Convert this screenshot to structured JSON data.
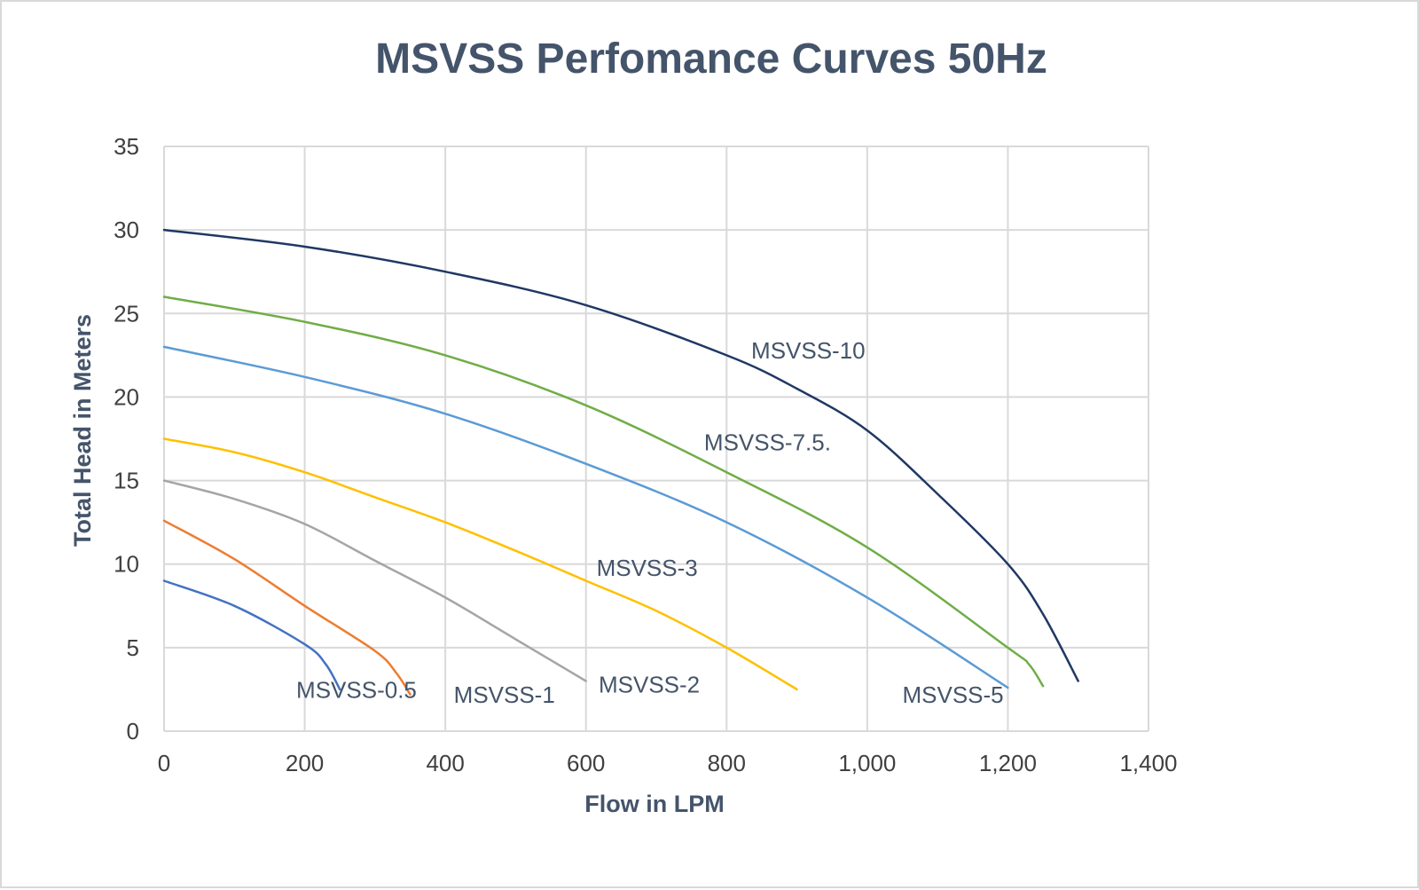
{
  "chart_data": {
    "type": "line",
    "title": "MSVSS Perfomance Curves 50Hz",
    "xlabel": "Flow in LPM",
    "ylabel": "Total Head in Meters",
    "xlim": [
      0,
      1400
    ],
    "ylim": [
      0,
      35
    ],
    "x_ticks": [
      "0",
      "200",
      "400",
      "600",
      "800",
      "1,000",
      "1,200",
      "1,400"
    ],
    "y_ticks": [
      "0",
      "5",
      "10",
      "15",
      "20",
      "25",
      "30",
      "35"
    ],
    "grid": true,
    "legend": "none",
    "series": [
      {
        "name": "MSVSS-0.5",
        "color": "#4472c4",
        "points": [
          [
            0,
            9.0
          ],
          [
            100,
            7.5
          ],
          [
            200,
            5.2
          ],
          [
            230,
            4.0
          ],
          [
            250,
            2.5
          ]
        ]
      },
      {
        "name": "MSVSS-1",
        "color": "#ed7d31",
        "points": [
          [
            0,
            12.6
          ],
          [
            100,
            10.3
          ],
          [
            200,
            7.5
          ],
          [
            300,
            4.8
          ],
          [
            330,
            3.5
          ],
          [
            350,
            2.2
          ]
        ]
      },
      {
        "name": "MSVSS-2",
        "color": "#a5a5a5",
        "points": [
          [
            0,
            15.0
          ],
          [
            100,
            13.9
          ],
          [
            200,
            12.4
          ],
          [
            300,
            10.2
          ],
          [
            400,
            8.0
          ],
          [
            500,
            5.5
          ],
          [
            600,
            3.0
          ]
        ]
      },
      {
        "name": "MSVSS-3",
        "color": "#ffc000",
        "points": [
          [
            0,
            17.5
          ],
          [
            100,
            16.7
          ],
          [
            200,
            15.5
          ],
          [
            300,
            14.0
          ],
          [
            400,
            12.5
          ],
          [
            500,
            10.8
          ],
          [
            600,
            9.0
          ],
          [
            700,
            7.2
          ],
          [
            800,
            5.0
          ],
          [
            900,
            2.5
          ]
        ]
      },
      {
        "name": "MSVSS-5",
        "color": "#5b9bd5",
        "points": [
          [
            0,
            23.0
          ],
          [
            200,
            21.2
          ],
          [
            400,
            19.0
          ],
          [
            600,
            16.0
          ],
          [
            800,
            12.5
          ],
          [
            1000,
            8.0
          ],
          [
            1200,
            2.6
          ]
        ]
      },
      {
        "name": "MSVSS-7.5.",
        "color": "#70ad47",
        "points": [
          [
            0,
            26.0
          ],
          [
            200,
            24.5
          ],
          [
            400,
            22.5
          ],
          [
            600,
            19.5
          ],
          [
            800,
            15.5
          ],
          [
            1000,
            11.0
          ],
          [
            1200,
            5.0
          ],
          [
            1230,
            4.0
          ],
          [
            1250,
            2.7
          ]
        ]
      },
      {
        "name": "MSVSS-10",
        "color": "#203864",
        "points": [
          [
            0,
            30.0
          ],
          [
            200,
            29.0
          ],
          [
            400,
            27.5
          ],
          [
            600,
            25.5
          ],
          [
            800,
            22.5
          ],
          [
            900,
            20.5
          ],
          [
            1000,
            18.0
          ],
          [
            1100,
            14.2
          ],
          [
            1200,
            10.0
          ],
          [
            1250,
            7.0
          ],
          [
            1300,
            3.0
          ]
        ]
      }
    ],
    "annotations": [
      {
        "text": "MSVSS-0.5",
        "x": 188,
        "y": 2.0
      },
      {
        "text": "MSVSS-1",
        "x": 412,
        "y": 1.7
      },
      {
        "text": "MSVSS-2",
        "x": 618,
        "y": 2.3
      },
      {
        "text": "MSVSS-3",
        "x": 615,
        "y": 9.3
      },
      {
        "text": "MSVSS-5",
        "x": 1050,
        "y": 1.7
      },
      {
        "text": "MSVSS-7.5.",
        "x": 768,
        "y": 16.8
      },
      {
        "text": "MSVSS-10",
        "x": 835,
        "y": 22.3
      }
    ]
  }
}
